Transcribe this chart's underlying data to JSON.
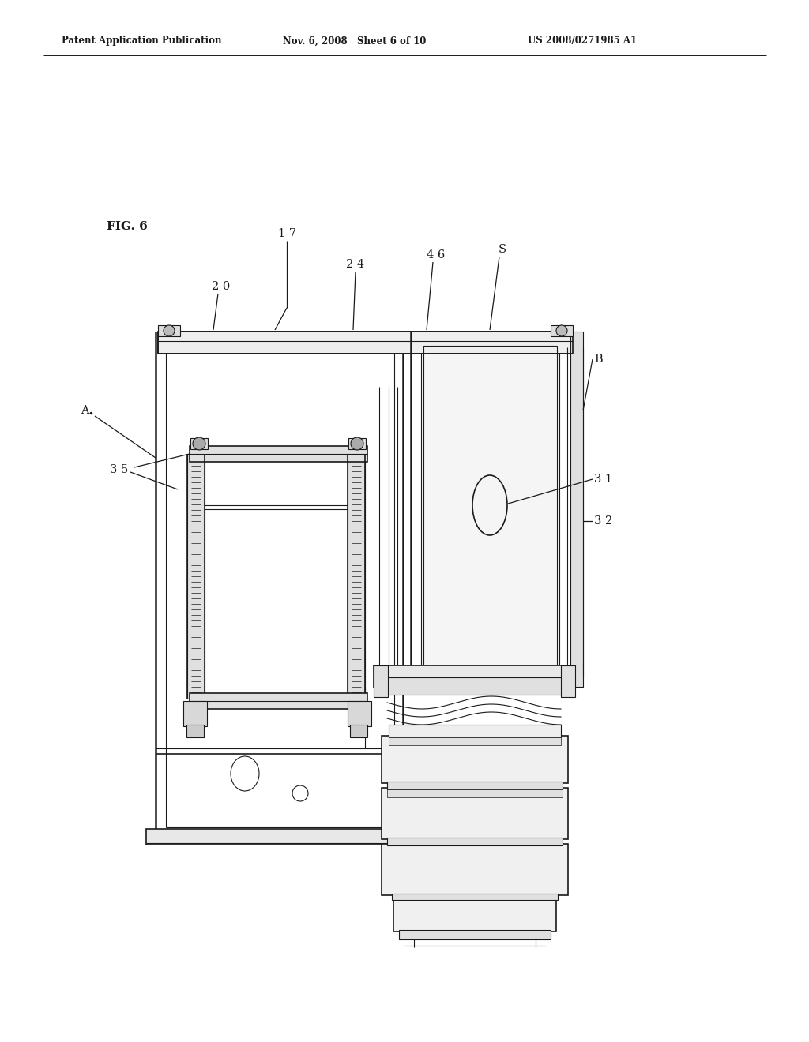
{
  "bg_color": "#ffffff",
  "lc": "#1a1a1a",
  "header_left": "Patent Application Publication",
  "header_mid": "Nov. 6, 2008   Sheet 6 of 10",
  "header_right": "US 2008/0271985 A1",
  "fig_label": "FIG. 6"
}
